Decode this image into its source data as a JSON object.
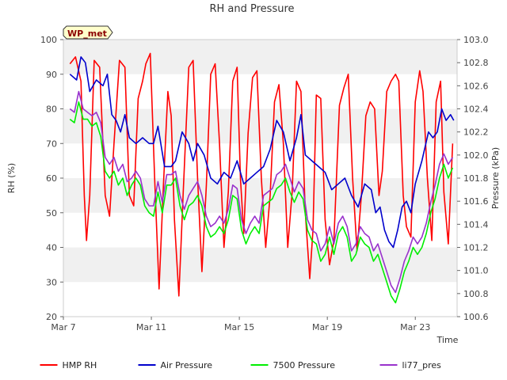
{
  "chart_data": {
    "type": "line",
    "title": "RH and Pressure",
    "badge": "WP_met",
    "xlabel": "Time",
    "ylabel": "RH (%)",
    "y2label": "Pressure (kPa)",
    "x_ticks": [
      {
        "day": 7,
        "label": "Mar 7"
      },
      {
        "day": 11,
        "label": "Mar 11"
      },
      {
        "day": 15,
        "label": "Mar 15"
      },
      {
        "day": 19,
        "label": "Mar 19"
      },
      {
        "day": 23,
        "label": "Mar 23"
      }
    ],
    "xlim": [
      7,
      24.9
    ],
    "ylim": [
      20,
      100
    ],
    "y_ticks": [
      "20",
      "30",
      "40",
      "50",
      "60",
      "70",
      "80",
      "90",
      "100"
    ],
    "y2lim": [
      100.6,
      103.0
    ],
    "y2_ticks": [
      "100.6",
      "100.8",
      "101.0",
      "101.2",
      "101.4",
      "101.6",
      "101.8",
      "102.0",
      "102.2",
      "102.4",
      "102.6",
      "102.8",
      "103.0"
    ],
    "grid": "horizontal bands",
    "legend_position": "bottom",
    "colors": {
      "band": "#f0f0f0",
      "rh": "#ff0000",
      "air": "#0000cc",
      "p7500": "#00ee00",
      "li77": "#9932cc"
    },
    "series": [
      {
        "name": "HMP RH",
        "key": "rh",
        "axis": "left",
        "x": [
          7.3,
          7.55,
          7.8,
          7.95,
          8.05,
          8.2,
          8.4,
          8.65,
          8.9,
          9.1,
          9.3,
          9.55,
          9.8,
          10.0,
          10.2,
          10.4,
          10.6,
          10.75,
          10.95,
          11.15,
          11.35,
          11.55,
          11.75,
          11.9,
          12.05,
          12.25,
          12.45,
          12.7,
          12.9,
          13.1,
          13.3,
          13.5,
          13.7,
          13.9,
          14.1,
          14.3,
          14.5,
          14.7,
          14.9,
          15.05,
          15.2,
          15.4,
          15.6,
          15.8,
          16.0,
          16.2,
          16.4,
          16.6,
          16.8,
          17.0,
          17.2,
          17.4,
          17.6,
          17.8,
          18.0,
          18.2,
          18.35,
          18.5,
          18.7,
          18.9,
          19.1,
          19.3,
          19.55,
          19.75,
          19.95,
          20.15,
          20.35,
          20.55,
          20.75,
          20.95,
          21.15,
          21.35,
          21.5,
          21.7,
          21.9,
          22.1,
          22.25,
          22.45,
          22.6,
          22.8,
          23.0,
          23.2,
          23.35,
          23.55,
          23.75,
          23.95,
          24.15,
          24.3,
          24.5,
          24.7
        ],
        "values": [
          93,
          95,
          88,
          55,
          42,
          55,
          94,
          92,
          55,
          49,
          70,
          94,
          92,
          55,
          52,
          83,
          88,
          93,
          96,
          60,
          28,
          58,
          85,
          78,
          48,
          26,
          56,
          92,
          94,
          60,
          33,
          58,
          90,
          93,
          70,
          40,
          56,
          88,
          92,
          60,
          44,
          73,
          89,
          91,
          60,
          40,
          55,
          82,
          87,
          70,
          40,
          56,
          88,
          85,
          50,
          31,
          45,
          84,
          83,
          48,
          35,
          42,
          81,
          86,
          90,
          60,
          39,
          55,
          78,
          82,
          80,
          55,
          62,
          85,
          88,
          90,
          88,
          55,
          46,
          43,
          82,
          91,
          85,
          60,
          42,
          82,
          88,
          56,
          41,
          70
        ]
      },
      {
        "name": "Air Pressure",
        "key": "air",
        "axis": "right",
        "x": [
          7.3,
          7.6,
          7.8,
          8.0,
          8.2,
          8.5,
          8.8,
          9.0,
          9.2,
          9.4,
          9.6,
          9.8,
          10.0,
          10.3,
          10.6,
          10.9,
          11.1,
          11.3,
          11.6,
          11.9,
          12.1,
          12.4,
          12.7,
          12.9,
          13.1,
          13.4,
          13.7,
          14.0,
          14.3,
          14.6,
          14.9,
          15.2,
          15.5,
          15.8,
          16.1,
          16.4,
          16.7,
          17.0,
          17.3,
          17.6,
          17.8,
          18.0,
          18.3,
          18.6,
          18.9,
          19.2,
          19.5,
          19.8,
          20.1,
          20.4,
          20.7,
          21.0,
          21.2,
          21.4,
          21.6,
          21.8,
          22.0,
          22.2,
          22.4,
          22.6,
          22.8,
          23.0,
          23.3,
          23.6,
          23.8,
          24.0,
          24.2,
          24.4,
          24.6,
          24.75
        ],
        "values": [
          102.7,
          102.65,
          102.85,
          102.8,
          102.55,
          102.65,
          102.6,
          102.7,
          102.35,
          102.3,
          102.2,
          102.35,
          102.15,
          102.1,
          102.15,
          102.1,
          102.1,
          102.25,
          101.9,
          101.9,
          101.95,
          102.2,
          102.1,
          101.95,
          102.1,
          102.0,
          101.8,
          101.75,
          101.85,
          101.8,
          101.95,
          101.75,
          101.8,
          101.85,
          101.9,
          102.05,
          102.3,
          102.2,
          101.95,
          102.15,
          102.35,
          102.0,
          101.95,
          101.9,
          101.85,
          101.7,
          101.75,
          101.8,
          101.65,
          101.55,
          101.75,
          101.7,
          101.5,
          101.55,
          101.35,
          101.25,
          101.2,
          101.35,
          101.55,
          101.6,
          101.5,
          101.75,
          101.95,
          102.2,
          102.15,
          102.2,
          102.4,
          102.3,
          102.35,
          102.3
        ]
      },
      {
        "name": "7500 Pressure",
        "key": "p7500",
        "axis": "left",
        "x": [
          7.3,
          7.5,
          7.7,
          7.9,
          8.1,
          8.3,
          8.5,
          8.7,
          8.9,
          9.1,
          9.3,
          9.5,
          9.7,
          9.9,
          10.1,
          10.3,
          10.5,
          10.7,
          10.9,
          11.1,
          11.3,
          11.5,
          11.7,
          11.9,
          12.1,
          12.3,
          12.5,
          12.7,
          12.9,
          13.1,
          13.3,
          13.5,
          13.7,
          13.9,
          14.1,
          14.3,
          14.5,
          14.7,
          14.9,
          15.1,
          15.3,
          15.5,
          15.7,
          15.9,
          16.1,
          16.3,
          16.5,
          16.7,
          16.9,
          17.1,
          17.3,
          17.5,
          17.7,
          17.9,
          18.1,
          18.3,
          18.5,
          18.7,
          18.9,
          19.1,
          19.3,
          19.5,
          19.7,
          19.9,
          20.1,
          20.3,
          20.5,
          20.7,
          20.9,
          21.1,
          21.3,
          21.5,
          21.7,
          21.9,
          22.1,
          22.3,
          22.5,
          22.7,
          22.9,
          23.1,
          23.3,
          23.5,
          23.7,
          23.9,
          24.1,
          24.3,
          24.5,
          24.7
        ],
        "values": [
          77,
          76,
          82,
          77,
          77,
          75,
          76,
          72,
          62,
          60,
          62,
          58,
          60,
          55,
          58,
          60,
          58,
          52,
          50,
          49,
          56,
          50,
          58,
          58,
          60,
          52,
          48,
          52,
          53,
          55,
          52,
          46,
          43,
          44,
          46,
          44,
          48,
          55,
          54,
          45,
          41,
          44,
          46,
          44,
          52,
          53,
          54,
          57,
          58,
          60,
          56,
          53,
          56,
          54,
          45,
          42,
          41,
          36,
          38,
          43,
          38,
          44,
          46,
          43,
          36,
          38,
          43,
          41,
          40,
          36,
          38,
          34,
          30,
          26,
          24,
          28,
          33,
          36,
          40,
          38,
          40,
          44,
          50,
          54,
          60,
          64,
          60,
          63
        ]
      },
      {
        "name": "li77_pres",
        "key": "li77",
        "axis": "left",
        "x": [
          7.3,
          7.5,
          7.7,
          7.9,
          8.1,
          8.3,
          8.5,
          8.7,
          8.9,
          9.1,
          9.3,
          9.5,
          9.7,
          9.9,
          10.1,
          10.3,
          10.5,
          10.7,
          10.9,
          11.1,
          11.3,
          11.5,
          11.7,
          11.9,
          12.1,
          12.3,
          12.5,
          12.7,
          12.9,
          13.1,
          13.3,
          13.5,
          13.7,
          13.9,
          14.1,
          14.3,
          14.5,
          14.7,
          14.9,
          15.1,
          15.3,
          15.5,
          15.7,
          15.9,
          16.1,
          16.3,
          16.5,
          16.7,
          16.9,
          17.1,
          17.3,
          17.5,
          17.7,
          17.9,
          18.1,
          18.3,
          18.5,
          18.7,
          18.9,
          19.1,
          19.3,
          19.5,
          19.7,
          19.9,
          20.1,
          20.3,
          20.5,
          20.7,
          20.9,
          21.1,
          21.3,
          21.5,
          21.7,
          21.9,
          22.1,
          22.3,
          22.5,
          22.7,
          22.9,
          23.1,
          23.3,
          23.5,
          23.7,
          23.9,
          24.1,
          24.3,
          24.5,
          24.7
        ],
        "values": [
          80,
          79,
          85,
          80,
          79,
          78,
          79,
          76,
          66,
          64,
          66,
          62,
          64,
          59,
          60,
          62,
          60,
          54,
          52,
          52,
          59,
          53,
          61,
          61,
          62,
          55,
          51,
          55,
          57,
          59,
          55,
          49,
          46,
          47,
          49,
          47,
          51,
          58,
          57,
          48,
          44,
          47,
          49,
          47,
          55,
          56,
          57,
          61,
          62,
          64,
          60,
          56,
          59,
          57,
          48,
          45,
          44,
          39,
          41,
          46,
          41,
          47,
          49,
          46,
          39,
          41,
          46,
          44,
          43,
          39,
          41,
          37,
          33,
          29,
          27,
          31,
          36,
          39,
          43,
          41,
          43,
          47,
          53,
          58,
          64,
          67,
          64,
          66
        ]
      }
    ]
  }
}
